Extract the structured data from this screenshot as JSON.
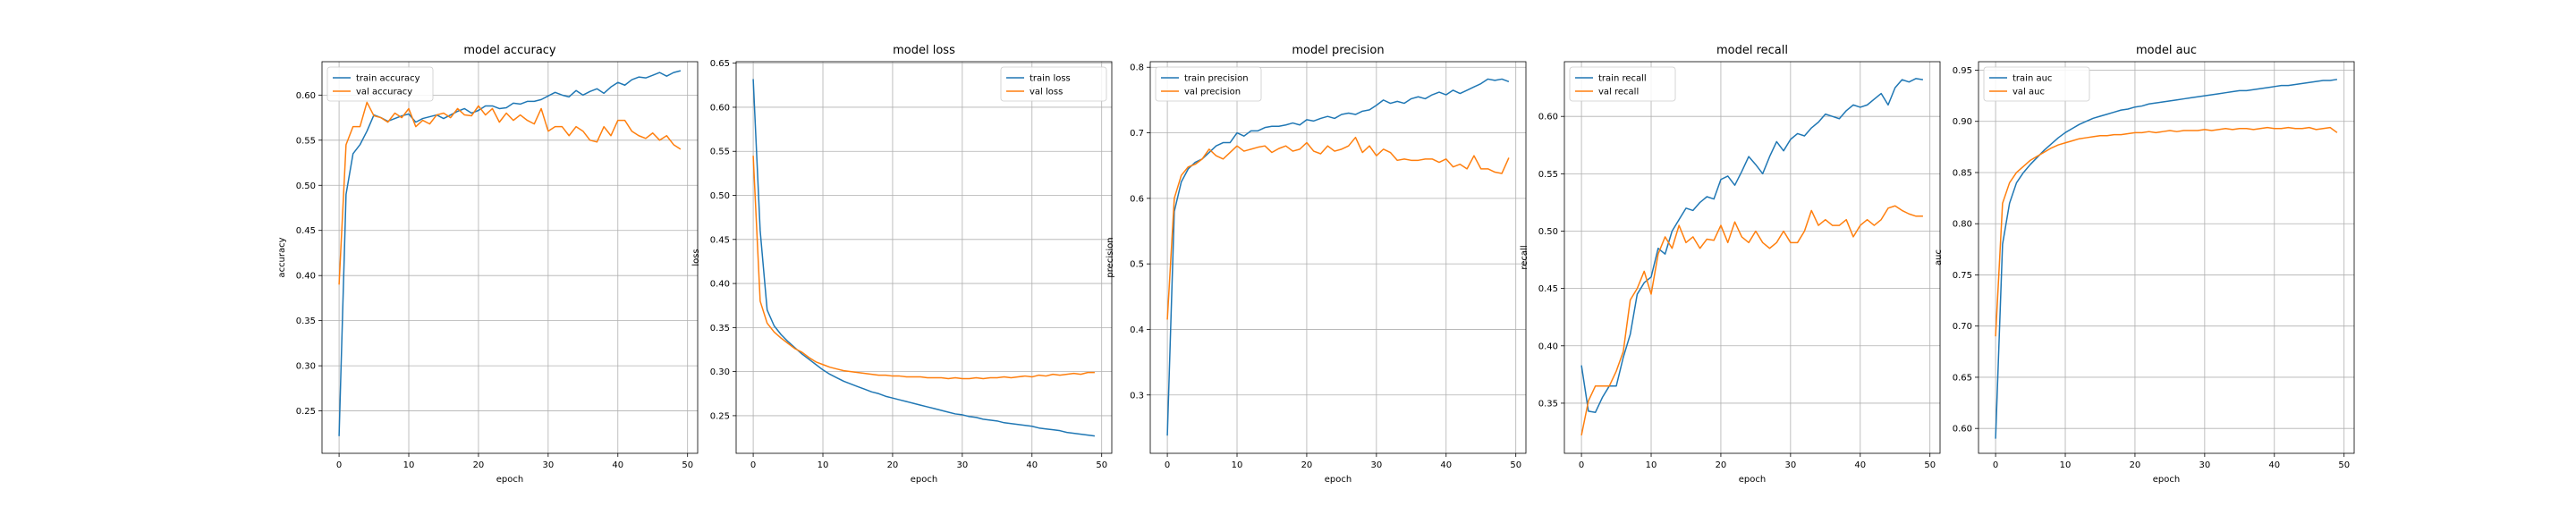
{
  "figure": {
    "background": "#ffffff"
  },
  "colors": {
    "train": "#1f77b4",
    "val": "#ff7f0e",
    "grid": "#b0b0b0",
    "axis": "#000000"
  },
  "chart_data": [
    {
      "type": "line",
      "title": "model accuracy",
      "xlabel": "epoch",
      "ylabel": "accuracy",
      "xlim": [
        -2.45,
        51.45
      ],
      "ylim": [
        0.203,
        0.637
      ],
      "xticks": [
        0,
        10,
        20,
        30,
        40,
        50
      ],
      "yticks": [
        0.25,
        0.3,
        0.35,
        0.4,
        0.45,
        0.5,
        0.55,
        0.6
      ],
      "ytick_labels": [
        "0.25",
        "0.30",
        "0.35",
        "0.40",
        "0.45",
        "0.50",
        "0.55",
        "0.60"
      ],
      "grid": true,
      "legend": "upper left",
      "series": [
        {
          "name": "train accuracy",
          "color": "#1f77b4",
          "x_start": 0,
          "values": [
            0.222,
            0.49,
            0.535,
            0.545,
            0.56,
            0.578,
            0.575,
            0.571,
            0.574,
            0.577,
            0.579,
            0.57,
            0.574,
            0.576,
            0.578,
            0.574,
            0.578,
            0.582,
            0.585,
            0.58,
            0.583,
            0.588,
            0.588,
            0.585,
            0.586,
            0.591,
            0.59,
            0.593,
            0.593,
            0.595,
            0.599,
            0.603,
            0.6,
            0.598,
            0.605,
            0.6,
            0.604,
            0.607,
            0.602,
            0.609,
            0.614,
            0.611,
            0.617,
            0.62,
            0.619,
            0.622,
            0.625,
            0.621,
            0.625,
            0.627
          ]
        },
        {
          "name": "val accuracy",
          "color": "#ff7f0e",
          "x_start": 0,
          "values": [
            0.39,
            0.545,
            0.565,
            0.565,
            0.592,
            0.577,
            0.575,
            0.57,
            0.58,
            0.575,
            0.585,
            0.565,
            0.572,
            0.568,
            0.578,
            0.58,
            0.575,
            0.585,
            0.578,
            0.577,
            0.588,
            0.578,
            0.585,
            0.57,
            0.58,
            0.572,
            0.578,
            0.572,
            0.568,
            0.585,
            0.56,
            0.565,
            0.565,
            0.555,
            0.565,
            0.56,
            0.55,
            0.548,
            0.565,
            0.555,
            0.572,
            0.572,
            0.56,
            0.555,
            0.552,
            0.558,
            0.55,
            0.555,
            0.545,
            0.54
          ]
        }
      ]
    },
    {
      "type": "line",
      "title": "model loss",
      "xlabel": "epoch",
      "ylabel": "loss",
      "xlim": [
        -2.45,
        51.45
      ],
      "ylim": [
        0.2073,
        0.6517
      ],
      "xticks": [
        0,
        10,
        20,
        30,
        40,
        50
      ],
      "yticks": [
        0.25,
        0.3,
        0.35,
        0.4,
        0.45,
        0.5,
        0.55,
        0.6,
        0.65
      ],
      "ytick_labels": [
        "0.25",
        "0.30",
        "0.35",
        "0.40",
        "0.45",
        "0.50",
        "0.55",
        "0.60",
        "0.65"
      ],
      "grid": true,
      "legend": "upper right",
      "series": [
        {
          "name": "train loss",
          "color": "#1f77b4",
          "x_start": 0,
          "values": [
            0.632,
            0.46,
            0.37,
            0.352,
            0.342,
            0.334,
            0.327,
            0.32,
            0.314,
            0.308,
            0.302,
            0.297,
            0.293,
            0.289,
            0.286,
            0.283,
            0.28,
            0.277,
            0.275,
            0.272,
            0.27,
            0.268,
            0.266,
            0.264,
            0.262,
            0.26,
            0.258,
            0.256,
            0.254,
            0.252,
            0.251,
            0.249,
            0.248,
            0.246,
            0.245,
            0.244,
            0.242,
            0.241,
            0.24,
            0.239,
            0.238,
            0.236,
            0.235,
            0.234,
            0.233,
            0.231,
            0.23,
            0.229,
            0.228,
            0.227
          ]
        },
        {
          "name": "val loss",
          "color": "#ff7f0e",
          "x_start": 0,
          "values": [
            0.545,
            0.38,
            0.355,
            0.345,
            0.338,
            0.332,
            0.326,
            0.322,
            0.316,
            0.311,
            0.308,
            0.305,
            0.303,
            0.301,
            0.3,
            0.299,
            0.298,
            0.297,
            0.296,
            0.296,
            0.295,
            0.295,
            0.294,
            0.294,
            0.294,
            0.293,
            0.293,
            0.293,
            0.292,
            0.293,
            0.292,
            0.292,
            0.293,
            0.292,
            0.293,
            0.293,
            0.294,
            0.293,
            0.294,
            0.295,
            0.294,
            0.296,
            0.295,
            0.297,
            0.296,
            0.297,
            0.298,
            0.297,
            0.299,
            0.299
          ]
        }
      ]
    },
    {
      "type": "line",
      "title": "model precision",
      "xlabel": "epoch",
      "ylabel": "precision",
      "xlim": [
        -2.45,
        51.45
      ],
      "ylim": [
        0.211,
        0.8085
      ],
      "xticks": [
        0,
        10,
        20,
        30,
        40,
        50
      ],
      "yticks": [
        0.3,
        0.4,
        0.5,
        0.6,
        0.7,
        0.8
      ],
      "ytick_labels": [
        "0.3",
        "0.4",
        "0.5",
        "0.6",
        "0.7",
        "0.8"
      ],
      "grid": true,
      "legend": "upper left",
      "series": [
        {
          "name": "train precision",
          "color": "#1f77b4",
          "x_start": 0,
          "values": [
            0.238,
            0.58,
            0.625,
            0.645,
            0.655,
            0.66,
            0.67,
            0.68,
            0.685,
            0.685,
            0.7,
            0.695,
            0.703,
            0.703,
            0.708,
            0.71,
            0.71,
            0.712,
            0.715,
            0.712,
            0.72,
            0.718,
            0.722,
            0.725,
            0.722,
            0.728,
            0.73,
            0.728,
            0.733,
            0.735,
            0.742,
            0.75,
            0.745,
            0.748,
            0.745,
            0.752,
            0.755,
            0.752,
            0.758,
            0.762,
            0.758,
            0.765,
            0.76,
            0.765,
            0.77,
            0.775,
            0.782,
            0.78,
            0.782,
            0.778
          ]
        },
        {
          "name": "val precision",
          "color": "#ff7f0e",
          "x_start": 0,
          "values": [
            0.415,
            0.6,
            0.635,
            0.648,
            0.652,
            0.66,
            0.675,
            0.665,
            0.66,
            0.67,
            0.68,
            0.672,
            0.675,
            0.678,
            0.68,
            0.67,
            0.676,
            0.68,
            0.672,
            0.675,
            0.685,
            0.672,
            0.668,
            0.68,
            0.672,
            0.675,
            0.68,
            0.693,
            0.67,
            0.68,
            0.665,
            0.675,
            0.67,
            0.658,
            0.66,
            0.658,
            0.658,
            0.66,
            0.66,
            0.655,
            0.66,
            0.648,
            0.652,
            0.645,
            0.665,
            0.645,
            0.645,
            0.64,
            0.638,
            0.662
          ]
        }
      ]
    },
    {
      "type": "line",
      "title": "model recall",
      "xlabel": "epoch",
      "ylabel": "recall",
      "xlim": [
        -2.45,
        51.45
      ],
      "ylim": [
        0.3063,
        0.6477
      ],
      "xticks": [
        0,
        10,
        20,
        30,
        40,
        50
      ],
      "yticks": [
        0.35,
        0.4,
        0.45,
        0.5,
        0.55,
        0.6
      ],
      "ytick_labels": [
        "0.35",
        "0.40",
        "0.45",
        "0.50",
        "0.55",
        "0.60"
      ],
      "grid": true,
      "legend": "upper left",
      "series": [
        {
          "name": "train recall",
          "color": "#1f77b4",
          "x_start": 0,
          "values": [
            0.383,
            0.343,
            0.342,
            0.355,
            0.365,
            0.365,
            0.39,
            0.41,
            0.445,
            0.455,
            0.46,
            0.485,
            0.48,
            0.5,
            0.51,
            0.52,
            0.518,
            0.525,
            0.53,
            0.528,
            0.545,
            0.548,
            0.54,
            0.552,
            0.565,
            0.558,
            0.55,
            0.565,
            0.578,
            0.57,
            0.58,
            0.585,
            0.583,
            0.59,
            0.595,
            0.602,
            0.6,
            0.598,
            0.605,
            0.61,
            0.608,
            0.61,
            0.615,
            0.62,
            0.61,
            0.625,
            0.632,
            0.63,
            0.633,
            0.632
          ]
        },
        {
          "name": "val recall",
          "color": "#ff7f0e",
          "x_start": 0,
          "values": [
            0.322,
            0.352,
            0.365,
            0.365,
            0.365,
            0.378,
            0.395,
            0.44,
            0.45,
            0.465,
            0.445,
            0.48,
            0.495,
            0.485,
            0.505,
            0.49,
            0.495,
            0.485,
            0.493,
            0.492,
            0.505,
            0.49,
            0.508,
            0.495,
            0.49,
            0.5,
            0.49,
            0.485,
            0.49,
            0.5,
            0.49,
            0.49,
            0.5,
            0.518,
            0.505,
            0.51,
            0.505,
            0.505,
            0.51,
            0.495,
            0.505,
            0.51,
            0.505,
            0.51,
            0.52,
            0.522,
            0.518,
            0.515,
            0.513,
            0.513
          ]
        }
      ]
    },
    {
      "type": "line",
      "title": "model auc",
      "xlabel": "epoch",
      "ylabel": "auc",
      "xlim": [
        -2.45,
        51.45
      ],
      "ylim": [
        0.5757,
        0.9583
      ],
      "xticks": [
        0,
        10,
        20,
        30,
        40,
        50
      ],
      "yticks": [
        0.6,
        0.65,
        0.7,
        0.75,
        0.8,
        0.85,
        0.9,
        0.95
      ],
      "ytick_labels": [
        "0.60",
        "0.65",
        "0.70",
        "0.75",
        "0.80",
        "0.85",
        "0.90",
        "0.95"
      ],
      "grid": true,
      "legend": "upper left",
      "series": [
        {
          "name": "train auc",
          "color": "#1f77b4",
          "x_start": 0,
          "values": [
            0.59,
            0.78,
            0.82,
            0.84,
            0.85,
            0.858,
            0.865,
            0.872,
            0.878,
            0.884,
            0.889,
            0.893,
            0.897,
            0.9,
            0.903,
            0.905,
            0.907,
            0.909,
            0.911,
            0.912,
            0.914,
            0.915,
            0.917,
            0.918,
            0.919,
            0.92,
            0.921,
            0.922,
            0.923,
            0.924,
            0.925,
            0.926,
            0.927,
            0.928,
            0.929,
            0.93,
            0.93,
            0.931,
            0.932,
            0.933,
            0.934,
            0.935,
            0.935,
            0.936,
            0.937,
            0.938,
            0.939,
            0.94,
            0.94,
            0.941
          ]
        },
        {
          "name": "val auc",
          "color": "#ff7f0e",
          "x_start": 0,
          "values": [
            0.69,
            0.82,
            0.84,
            0.85,
            0.856,
            0.862,
            0.866,
            0.87,
            0.874,
            0.877,
            0.879,
            0.881,
            0.883,
            0.884,
            0.885,
            0.886,
            0.886,
            0.887,
            0.887,
            0.888,
            0.889,
            0.889,
            0.89,
            0.889,
            0.89,
            0.891,
            0.89,
            0.891,
            0.891,
            0.891,
            0.892,
            0.891,
            0.892,
            0.893,
            0.892,
            0.893,
            0.893,
            0.892,
            0.893,
            0.894,
            0.893,
            0.893,
            0.894,
            0.893,
            0.893,
            0.894,
            0.892,
            0.893,
            0.894,
            0.889
          ]
        }
      ]
    }
  ]
}
